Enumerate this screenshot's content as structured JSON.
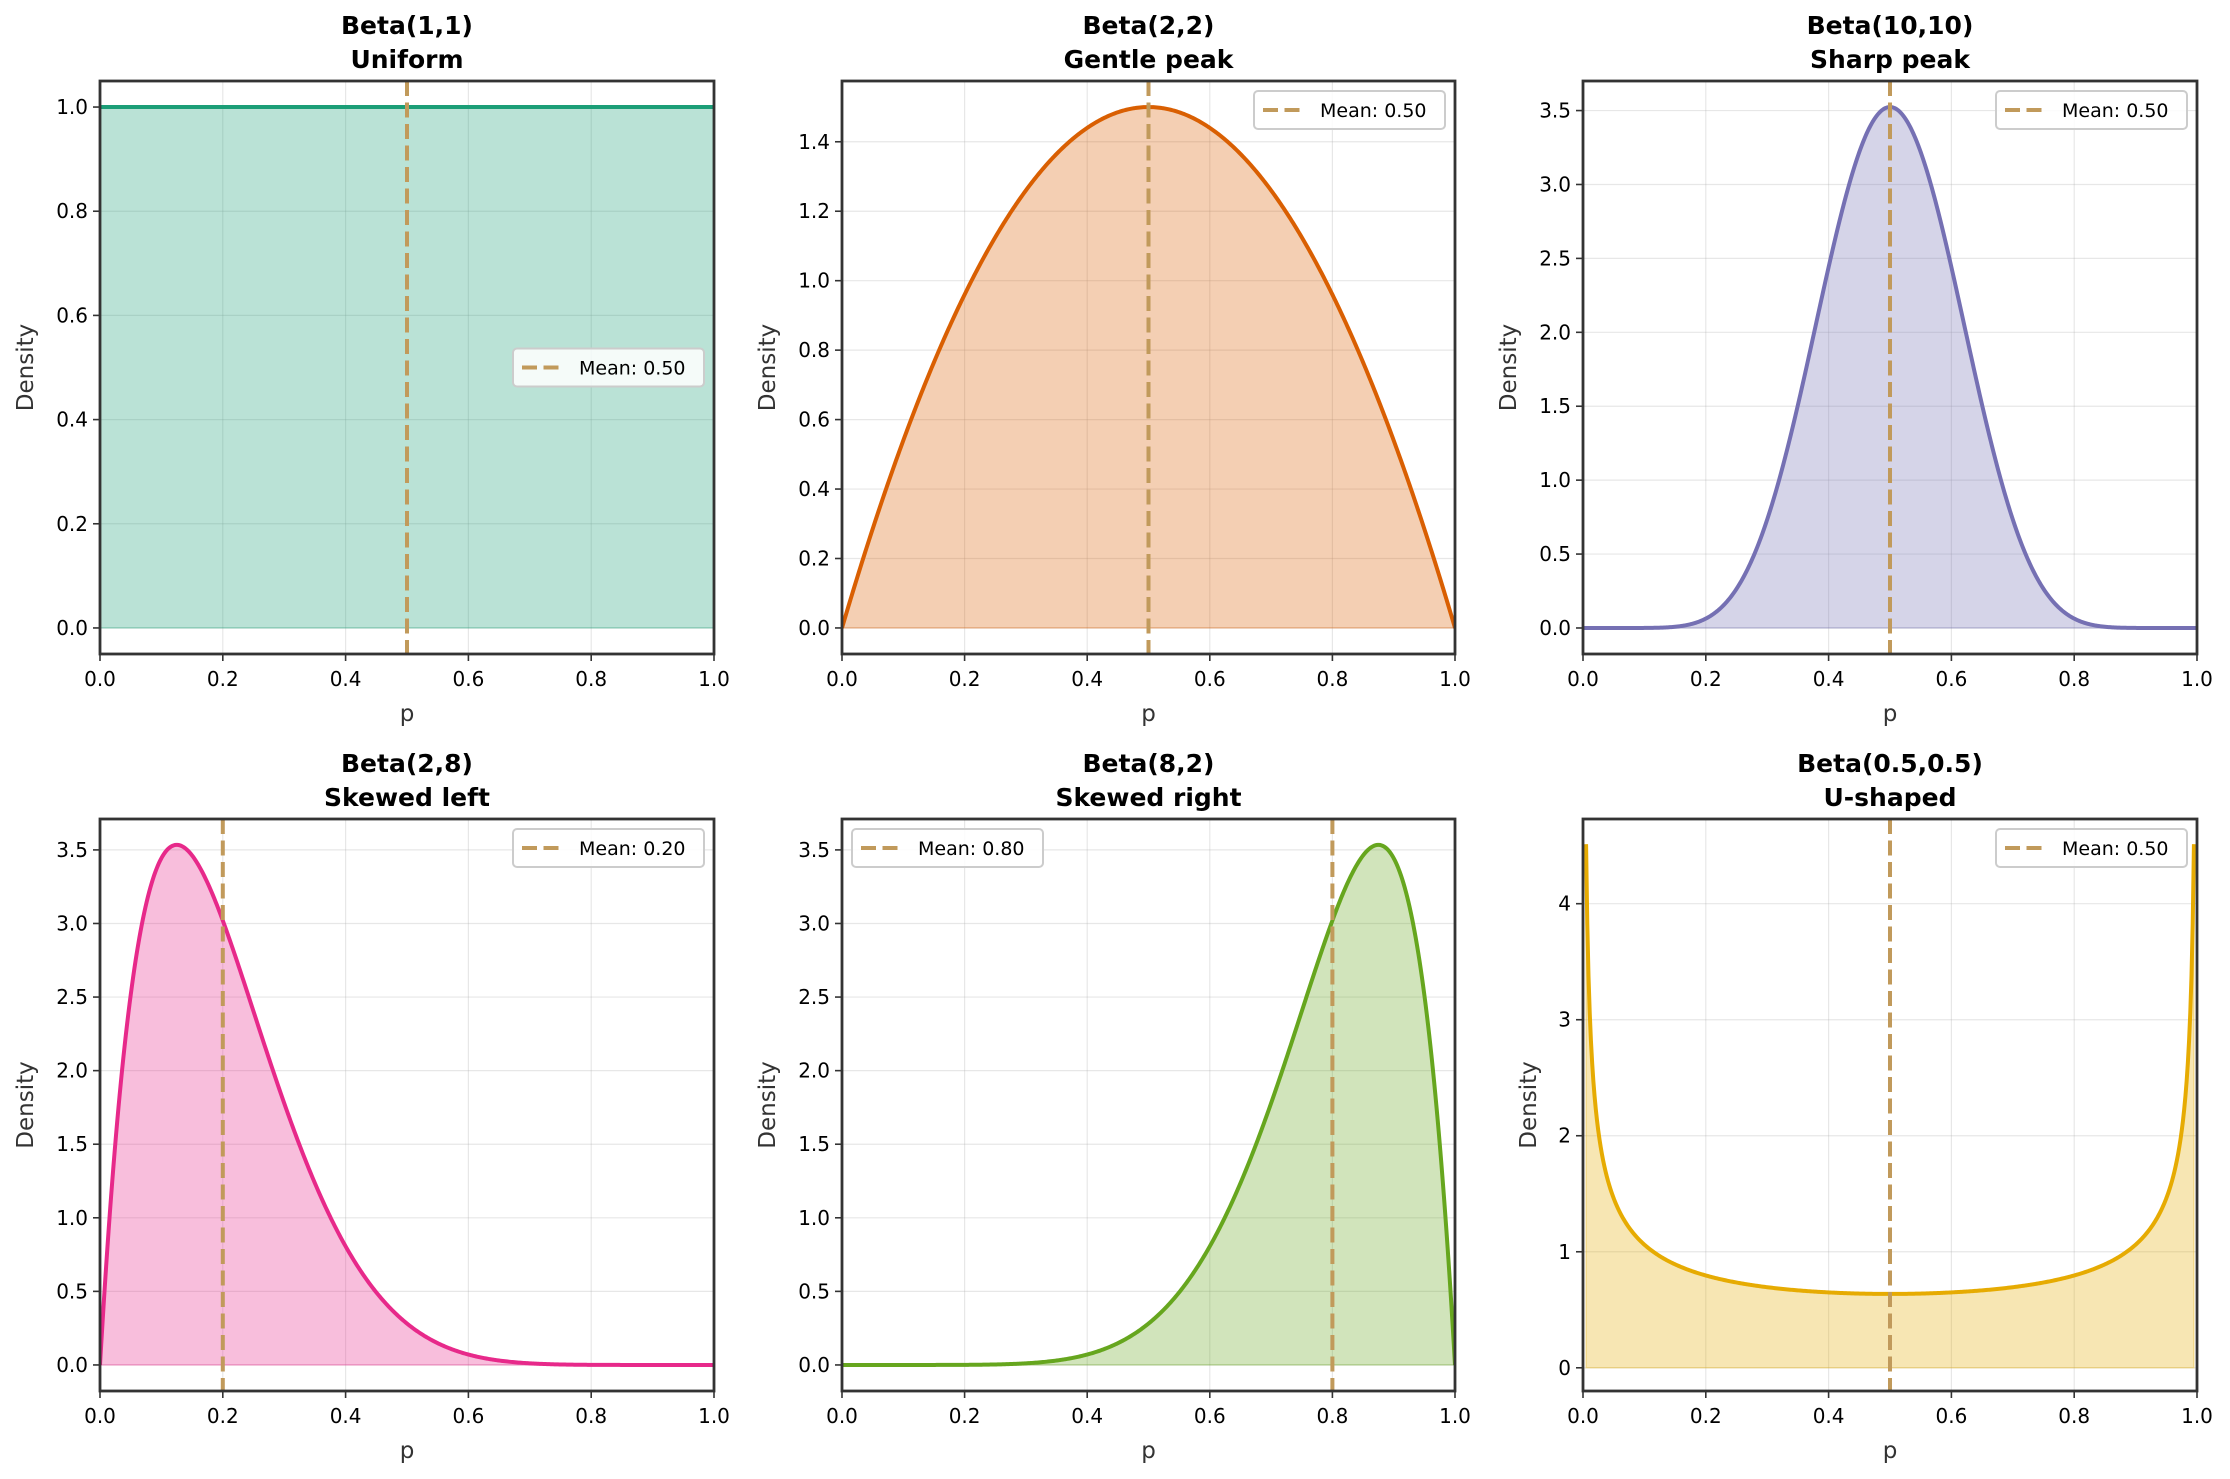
{
  "chart_data": [
    {
      "type": "area",
      "title": "Beta(1,1)",
      "subtitle": "Uniform",
      "alpha": 1,
      "beta": 1,
      "mean": 0.5,
      "legend": "Mean: 0.50",
      "legend_position": "center-right",
      "color": "#1b9e77",
      "xlabel": "p",
      "ylabel": "Density",
      "xlim": [
        0,
        1
      ],
      "ylim": [
        -0.05,
        1.05
      ],
      "xticks": [
        "0.0",
        "0.2",
        "0.4",
        "0.6",
        "0.8",
        "1.0"
      ],
      "yticks": [
        "0.0",
        "0.2",
        "0.4",
        "0.6",
        "0.8",
        "1.0"
      ],
      "grid": true
    },
    {
      "type": "area",
      "title": "Beta(2,2)",
      "subtitle": "Gentle peak",
      "alpha": 2,
      "beta": 2,
      "mean": 0.5,
      "legend": "Mean: 0.50",
      "legend_position": "top-right",
      "color": "#d95f02",
      "xlabel": "p",
      "ylabel": "Density",
      "xlim": [
        0,
        1
      ],
      "ylim": [
        -0.075,
        1.575
      ],
      "xticks": [
        "0.0",
        "0.2",
        "0.4",
        "0.6",
        "0.8",
        "1.0"
      ],
      "yticks": [
        "0.0",
        "0.2",
        "0.4",
        "0.6",
        "0.8",
        "1.0",
        "1.2",
        "1.4"
      ],
      "grid": true
    },
    {
      "type": "area",
      "title": "Beta(10,10)",
      "subtitle": "Sharp peak",
      "alpha": 10,
      "beta": 10,
      "mean": 0.5,
      "legend": "Mean: 0.50",
      "legend_position": "top-right",
      "color": "#7570b3",
      "xlabel": "p",
      "ylabel": "Density",
      "xlim": [
        0,
        1
      ],
      "ylim": [
        -0.176,
        3.7
      ],
      "xticks": [
        "0.0",
        "0.2",
        "0.4",
        "0.6",
        "0.8",
        "1.0"
      ],
      "yticks": [
        "0.0",
        "0.5",
        "1.0",
        "1.5",
        "2.0",
        "2.5",
        "3.0",
        "3.5"
      ],
      "grid": true
    },
    {
      "type": "area",
      "title": "Beta(2,8)",
      "subtitle": "Skewed left",
      "alpha": 2,
      "beta": 8,
      "mean": 0.2,
      "legend": "Mean: 0.20",
      "legend_position": "top-right",
      "color": "#e7298a",
      "xlabel": "p",
      "ylabel": "Density",
      "xlim": [
        0,
        1
      ],
      "ylim": [
        -0.177,
        3.71
      ],
      "xticks": [
        "0.0",
        "0.2",
        "0.4",
        "0.6",
        "0.8",
        "1.0"
      ],
      "yticks": [
        "0.0",
        "0.5",
        "1.0",
        "1.5",
        "2.0",
        "2.5",
        "3.0",
        "3.5"
      ],
      "grid": true
    },
    {
      "type": "area",
      "title": "Beta(8,2)",
      "subtitle": "Skewed right",
      "alpha": 8,
      "beta": 2,
      "mean": 0.8,
      "legend": "Mean: 0.80",
      "legend_position": "top-left",
      "color": "#66a61e",
      "xlabel": "p",
      "ylabel": "Density",
      "xlim": [
        0,
        1
      ],
      "ylim": [
        -0.177,
        3.71
      ],
      "xticks": [
        "0.0",
        "0.2",
        "0.4",
        "0.6",
        "0.8",
        "1.0"
      ],
      "yticks": [
        "0.0",
        "0.5",
        "1.0",
        "1.5",
        "2.0",
        "2.5",
        "3.0",
        "3.5"
      ],
      "grid": true
    },
    {
      "type": "area",
      "title": "Beta(0.5,0.5)",
      "subtitle": "U-shaped",
      "alpha": 0.5,
      "beta": 0.5,
      "mean": 0.5,
      "legend": "Mean: 0.50",
      "legend_position": "top-right",
      "color": "#e6ab02",
      "xlabel": "p",
      "ylabel": "Density",
      "xlim": [
        0,
        1
      ],
      "ylim": [
        -0.2,
        4.73
      ],
      "xrange": [
        0.005,
        0.995
      ],
      "xticks": [
        "0.0",
        "0.2",
        "0.4",
        "0.6",
        "0.8",
        "1.0"
      ],
      "yticks": [
        "0",
        "1",
        "2",
        "3",
        "4"
      ],
      "grid": true
    }
  ],
  "mean_line_color": "#c19a5b"
}
